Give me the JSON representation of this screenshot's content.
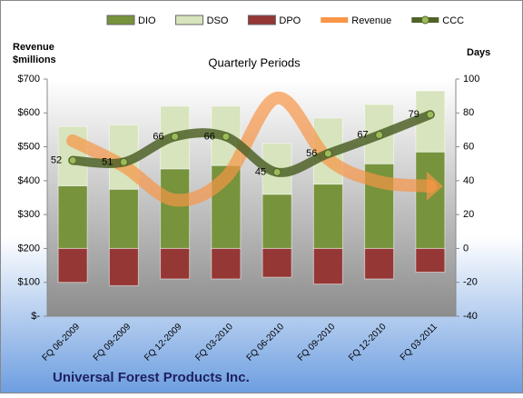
{
  "chart_data": {
    "type": "bar",
    "title": "Quarterly Periods",
    "ylabel": [
      "Revenue",
      "$millions"
    ],
    "y2label": "Days",
    "footer": "Universal Forest Products Inc.",
    "categories": [
      "FQ 06-2009",
      "FQ 09-2009",
      "FQ 12-2009",
      "FQ 03-2010",
      "FQ 06-2010",
      "FQ 09-2010",
      "FQ 12-2010",
      "FQ 03-2011"
    ],
    "series": [
      {
        "name": "DIO",
        "color": "#77933c",
        "type": "bar",
        "axis": "y2",
        "values": [
          37,
          35,
          47,
          49,
          32,
          38,
          50,
          57
        ]
      },
      {
        "name": "DSO",
        "color": "#d7e4bd",
        "type": "bar",
        "axis": "y2",
        "values": [
          35,
          38,
          37,
          35,
          30,
          39,
          35,
          36
        ]
      },
      {
        "name": "DPO",
        "color": "#953735",
        "type": "bar",
        "axis": "y2",
        "values": [
          -20,
          -22,
          -18,
          -18,
          -17,
          -21,
          -18,
          -14
        ]
      },
      {
        "name": "Revenue",
        "color": "#f79646",
        "type": "line",
        "axis": "y",
        "values": [
          518,
          443,
          343,
          410,
          644,
          464,
          397,
          384
        ]
      },
      {
        "name": "CCC",
        "color": "#4f6228",
        "type": "line",
        "axis": "y2",
        "values": [
          52,
          51,
          66,
          66,
          45,
          56,
          67,
          79
        ]
      }
    ],
    "ylim": [
      0,
      700
    ],
    "yticks": [
      {
        "value": 0,
        "label": "$-"
      },
      {
        "value": 100,
        "label": "$100"
      },
      {
        "value": 200,
        "label": "$200"
      },
      {
        "value": 300,
        "label": "$300"
      },
      {
        "value": 400,
        "label": "$400"
      },
      {
        "value": 500,
        "label": "$500"
      },
      {
        "value": 600,
        "label": "$600"
      },
      {
        "value": 700,
        "label": "$700"
      }
    ],
    "y2lim": [
      -40,
      100
    ],
    "y2ticks": [
      -40,
      -20,
      0,
      20,
      40,
      60,
      80,
      100
    ]
  }
}
